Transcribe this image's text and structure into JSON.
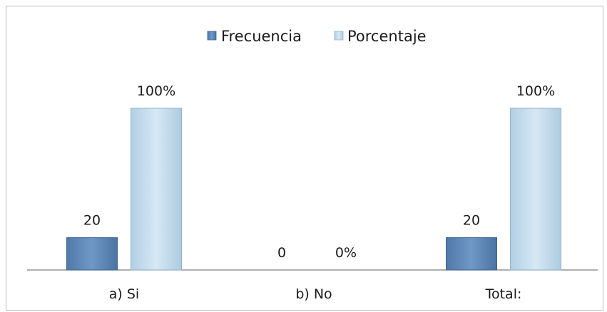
{
  "chart_data": {
    "type": "bar",
    "categories": [
      "a) Si",
      "b) No",
      "Total:"
    ],
    "series": [
      {
        "name": "Frecuencia",
        "values": [
          20,
          0,
          20
        ],
        "labels": [
          "20",
          "0",
          "20"
        ],
        "color": "#5a86b8"
      },
      {
        "name": "Porcentaje",
        "values": [
          100,
          0,
          100
        ],
        "labels": [
          "100%",
          "0%",
          "100%"
        ],
        "color": "#c2dbeb"
      }
    ],
    "title": "",
    "xlabel": "",
    "ylabel": "",
    "ylim": [
      0,
      100
    ],
    "grid": false,
    "legend_position": "top-center"
  }
}
